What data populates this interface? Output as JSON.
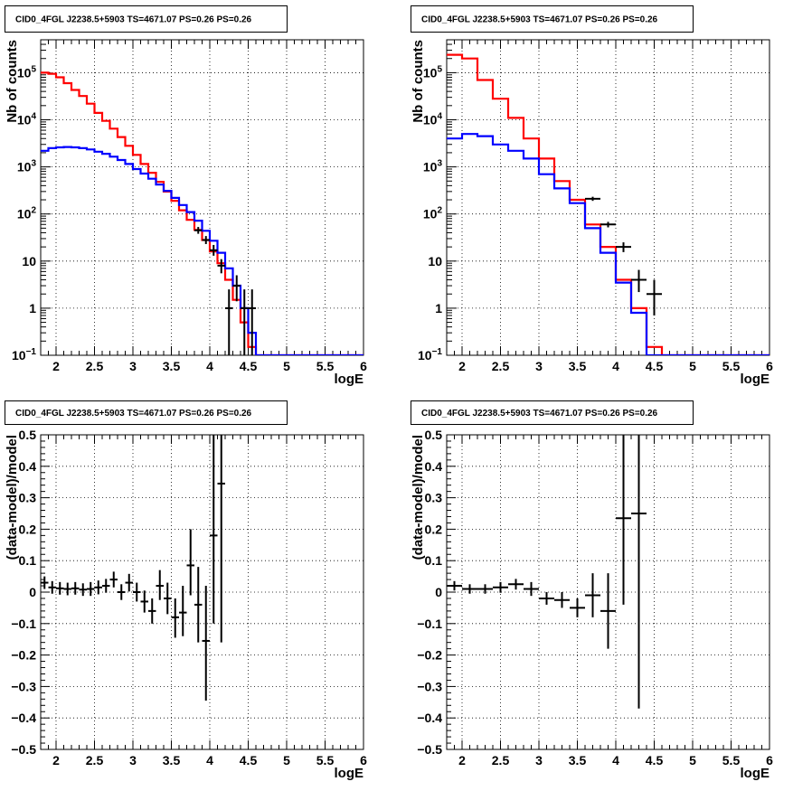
{
  "chart_data": [
    {
      "type": "line",
      "title": "CID0_4FGL J2238.5+5903 TS=4671.07 PS=0.26 PS=0.26",
      "xlabel": "logE",
      "ylabel": "Nb of counts",
      "yscale": "log",
      "xlim": [
        1.8,
        6.0
      ],
      "ylim": [
        0.1,
        500000
      ],
      "grid": true,
      "x_ticks": [
        "2",
        "2.5",
        "3",
        "3.5",
        "4",
        "4.5",
        "5",
        "5.5",
        "6"
      ],
      "y_ticks": [
        {
          "base": "10",
          "sup": "−1"
        },
        {
          "base": "1",
          "sup": ""
        },
        {
          "base": "10",
          "sup": ""
        },
        {
          "base": "10",
          "sup": "2"
        },
        {
          "base": "10",
          "sup": "3"
        },
        {
          "base": "10",
          "sup": "4"
        },
        {
          "base": "10",
          "sup": "5"
        }
      ],
      "bin_edges": [
        1.8,
        1.9,
        2.0,
        2.1,
        2.2,
        2.3,
        2.4,
        2.5,
        2.6,
        2.7,
        2.8,
        2.9,
        3.0,
        3.1,
        3.2,
        3.3,
        3.4,
        3.5,
        3.6,
        3.7,
        3.8,
        3.9,
        4.0,
        4.1,
        4.2,
        4.3,
        4.4,
        4.5,
        4.6,
        4.7,
        4.8,
        4.9,
        5.0,
        5.1,
        5.2,
        5.3,
        5.4,
        5.5,
        5.6,
        5.7,
        5.8,
        5.9,
        6.0
      ],
      "series": [
        {
          "color": "#ff0000",
          "values": [
            100000,
            95000,
            80000,
            60000,
            43000,
            32000,
            22000,
            14000,
            9500,
            6500,
            4300,
            2800,
            1800,
            1150,
            750,
            480,
            300,
            190,
            120,
            75,
            46,
            28,
            16,
            9,
            4,
            1.5,
            0.5,
            0.15,
            0.05,
            0.05,
            0.05,
            0.05,
            0.05,
            0.05,
            0.05,
            0.05,
            0.05,
            0.05,
            0.05,
            0.05,
            0.05,
            0.05
          ]
        },
        {
          "color": "#0000ff",
          "values": [
            2200,
            2500,
            2600,
            2650,
            2600,
            2500,
            2350,
            2100,
            1900,
            1650,
            1400,
            1150,
            900,
            720,
            560,
            420,
            310,
            220,
            155,
            110,
            72,
            44,
            27,
            15,
            7,
            3,
            1,
            0.3,
            0.1,
            0.1,
            0.1,
            0.1,
            0.1,
            0.1,
            0.1,
            0.1,
            0.1,
            0.1,
            0.1,
            0.1,
            0.1,
            0.1
          ]
        }
      ],
      "points": [
        {
          "x": 3.85,
          "y": 45,
          "xerr": 0.05,
          "ylo": 38,
          "yhi": 53
        },
        {
          "x": 3.95,
          "y": 28,
          "xerr": 0.05,
          "ylo": 23,
          "yhi": 34
        },
        {
          "x": 4.05,
          "y": 17,
          "xerr": 0.05,
          "ylo": 13,
          "yhi": 22
        },
        {
          "x": 4.15,
          "y": 8,
          "xerr": 0.05,
          "ylo": 5.5,
          "yhi": 11
        },
        {
          "x": 4.25,
          "y": 1,
          "xerr": 0.05,
          "ylo": 0.1,
          "yhi": 2.5
        },
        {
          "x": 4.35,
          "y": 3,
          "xerr": 0.05,
          "ylo": 1.4,
          "yhi": 5
        },
        {
          "x": 4.45,
          "y": 1,
          "xerr": 0.05,
          "ylo": 0.1,
          "yhi": 2.5
        },
        {
          "x": 4.55,
          "y": 1,
          "xerr": 0.05,
          "ylo": 0.1,
          "yhi": 2.5
        }
      ]
    },
    {
      "type": "line",
      "title": "CID0_4FGL J2238.5+5903 TS=4671.07 PS=0.26 PS=0.26",
      "xlabel": "logE",
      "ylabel": "Nb of counts",
      "yscale": "log",
      "xlim": [
        1.8,
        6.0
      ],
      "ylim": [
        0.1,
        500000
      ],
      "grid": true,
      "x_ticks": [
        "2",
        "2.5",
        "3",
        "3.5",
        "4",
        "4.5",
        "5",
        "5.5",
        "6"
      ],
      "y_ticks": [
        {
          "base": "10",
          "sup": "−1"
        },
        {
          "base": "1",
          "sup": ""
        },
        {
          "base": "10",
          "sup": ""
        },
        {
          "base": "10",
          "sup": "2"
        },
        {
          "base": "10",
          "sup": "3"
        },
        {
          "base": "10",
          "sup": "4"
        },
        {
          "base": "10",
          "sup": "5"
        }
      ],
      "bin_edges": [
        1.8,
        2.0,
        2.2,
        2.4,
        2.6,
        2.8,
        3.0,
        3.2,
        3.4,
        3.6,
        3.8,
        4.0,
        4.2,
        4.4,
        4.6,
        4.8,
        5.0,
        5.2,
        5.4,
        5.6,
        5.8,
        6.0
      ],
      "series": [
        {
          "color": "#ff0000",
          "values": [
            240000,
            200000,
            70000,
            28000,
            11000,
            4000,
            1500,
            500,
            200,
            60,
            20,
            4,
            1,
            0.15,
            0.05,
            0.05,
            0.05,
            0.05,
            0.05,
            0.05,
            0.05
          ]
        },
        {
          "color": "#0000ff",
          "values": [
            4000,
            5000,
            4500,
            3000,
            2200,
            1500,
            700,
            350,
            170,
            50,
            15,
            3.5,
            0.8,
            0.1,
            0.1,
            0.1,
            0.1,
            0.1,
            0.1,
            0.1,
            0.1
          ]
        }
      ],
      "points": [
        {
          "x": 3.7,
          "y": 210,
          "xerr": 0.1,
          "ylo": 190,
          "yhi": 232
        },
        {
          "x": 3.9,
          "y": 60,
          "xerr": 0.1,
          "ylo": 52,
          "yhi": 68
        },
        {
          "x": 4.1,
          "y": 20,
          "xerr": 0.1,
          "ylo": 15.5,
          "yhi": 25
        },
        {
          "x": 4.3,
          "y": 4,
          "xerr": 0.1,
          "ylo": 2.2,
          "yhi": 6.5
        },
        {
          "x": 4.5,
          "y": 2,
          "xerr": 0.1,
          "ylo": 0.7,
          "yhi": 4
        }
      ]
    },
    {
      "type": "scatter",
      "title": "CID0_4FGL J2238.5+5903 TS=4671.07 PS=0.26 PS=0.26",
      "xlabel": "logE",
      "ylabel": "(data-model)/model",
      "xlim": [
        1.8,
        6.0
      ],
      "ylim": [
        -0.5,
        0.5
      ],
      "grid": true,
      "x_ticks": [
        "2",
        "2.5",
        "3",
        "3.5",
        "4",
        "4.5",
        "5",
        "5.5",
        "6"
      ],
      "y_ticks": [
        "−0.5",
        "−0.4",
        "−0.3",
        "−0.2",
        "−0.1",
        "0",
        "0.1",
        "0.2",
        "0.3",
        "0.4",
        "0.5"
      ],
      "points": [
        {
          "x": 1.85,
          "y": 0.03,
          "xerr": 0.05,
          "ylo": 0.01,
          "yhi": 0.05
        },
        {
          "x": 1.95,
          "y": 0.015,
          "xerr": 0.05,
          "ylo": -0.005,
          "yhi": 0.035
        },
        {
          "x": 2.05,
          "y": 0.012,
          "xerr": 0.05,
          "ylo": -0.008,
          "yhi": 0.032
        },
        {
          "x": 2.15,
          "y": 0.01,
          "xerr": 0.05,
          "ylo": -0.01,
          "yhi": 0.03
        },
        {
          "x": 2.25,
          "y": 0.012,
          "xerr": 0.05,
          "ylo": -0.008,
          "yhi": 0.032
        },
        {
          "x": 2.35,
          "y": 0.008,
          "xerr": 0.05,
          "ylo": -0.012,
          "yhi": 0.028
        },
        {
          "x": 2.45,
          "y": 0.01,
          "xerr": 0.05,
          "ylo": -0.012,
          "yhi": 0.032
        },
        {
          "x": 2.55,
          "y": 0.015,
          "xerr": 0.05,
          "ylo": -0.007,
          "yhi": 0.037
        },
        {
          "x": 2.65,
          "y": 0.02,
          "xerr": 0.05,
          "ylo": -0.002,
          "yhi": 0.042
        },
        {
          "x": 2.75,
          "y": 0.04,
          "xerr": 0.05,
          "ylo": 0.015,
          "yhi": 0.065
        },
        {
          "x": 2.85,
          "y": 0.0,
          "xerr": 0.05,
          "ylo": -0.025,
          "yhi": 0.025
        },
        {
          "x": 2.95,
          "y": 0.03,
          "xerr": 0.05,
          "ylo": 0.002,
          "yhi": 0.058
        },
        {
          "x": 3.05,
          "y": 0.0,
          "xerr": 0.05,
          "ylo": -0.03,
          "yhi": 0.03
        },
        {
          "x": 3.15,
          "y": -0.03,
          "xerr": 0.05,
          "ylo": -0.065,
          "yhi": 0.005
        },
        {
          "x": 3.25,
          "y": -0.06,
          "xerr": 0.05,
          "ylo": -0.1,
          "yhi": -0.02
        },
        {
          "x": 3.35,
          "y": 0.02,
          "xerr": 0.05,
          "ylo": -0.025,
          "yhi": 0.07
        },
        {
          "x": 3.45,
          "y": -0.02,
          "xerr": 0.05,
          "ylo": -0.07,
          "yhi": 0.03
        },
        {
          "x": 3.55,
          "y": -0.08,
          "xerr": 0.05,
          "ylo": -0.145,
          "yhi": -0.02
        },
        {
          "x": 3.65,
          "y": -0.065,
          "xerr": 0.05,
          "ylo": -0.14,
          "yhi": 0.02
        },
        {
          "x": 3.75,
          "y": 0.085,
          "xerr": 0.05,
          "ylo": -0.01,
          "yhi": 0.2
        },
        {
          "x": 3.85,
          "y": -0.04,
          "xerr": 0.05,
          "ylo": -0.16,
          "yhi": 0.08
        },
        {
          "x": 3.95,
          "y": -0.155,
          "xerr": 0.05,
          "ylo": -0.345,
          "yhi": 0.02
        },
        {
          "x": 4.05,
          "y": 0.18,
          "xerr": 0.05,
          "ylo": -0.1,
          "yhi": 0.5
        },
        {
          "x": 4.15,
          "y": 0.345,
          "xerr": 0.05,
          "ylo": -0.16,
          "yhi": 0.5
        }
      ]
    },
    {
      "type": "scatter",
      "title": "CID0_4FGL J2238.5+5903 TS=4671.07 PS=0.26 PS=0.26",
      "xlabel": "logE",
      "ylabel": "(data-model)/model",
      "xlim": [
        1.8,
        6.0
      ],
      "ylim": [
        -0.5,
        0.5
      ],
      "grid": true,
      "x_ticks": [
        "2",
        "2.5",
        "3",
        "3.5",
        "4",
        "4.5",
        "5",
        "5.5",
        "6"
      ],
      "y_ticks": [
        "−0.5",
        "−0.4",
        "−0.3",
        "−0.2",
        "−0.1",
        "0",
        "0.1",
        "0.2",
        "0.3",
        "0.4",
        "0.5"
      ],
      "points": [
        {
          "x": 1.9,
          "y": 0.02,
          "xerr": 0.1,
          "ylo": 0.005,
          "yhi": 0.035
        },
        {
          "x": 2.1,
          "y": 0.01,
          "xerr": 0.1,
          "ylo": -0.005,
          "yhi": 0.025
        },
        {
          "x": 2.3,
          "y": 0.01,
          "xerr": 0.1,
          "ylo": -0.005,
          "yhi": 0.025
        },
        {
          "x": 2.5,
          "y": 0.015,
          "xerr": 0.1,
          "ylo": -0.002,
          "yhi": 0.032
        },
        {
          "x": 2.7,
          "y": 0.025,
          "xerr": 0.1,
          "ylo": 0.008,
          "yhi": 0.042
        },
        {
          "x": 2.9,
          "y": 0.01,
          "xerr": 0.1,
          "ylo": -0.012,
          "yhi": 0.032
        },
        {
          "x": 3.1,
          "y": -0.02,
          "xerr": 0.1,
          "ylo": -0.04,
          "yhi": 0.0
        },
        {
          "x": 3.3,
          "y": -0.025,
          "xerr": 0.1,
          "ylo": -0.05,
          "yhi": 0.0
        },
        {
          "x": 3.5,
          "y": -0.05,
          "xerr": 0.1,
          "ylo": -0.08,
          "yhi": -0.02
        },
        {
          "x": 3.7,
          "y": -0.01,
          "xerr": 0.1,
          "ylo": -0.08,
          "yhi": 0.06
        },
        {
          "x": 3.9,
          "y": -0.06,
          "xerr": 0.1,
          "ylo": -0.18,
          "yhi": 0.06
        },
        {
          "x": 4.1,
          "y": 0.235,
          "xerr": 0.1,
          "ylo": -0.04,
          "yhi": 0.5
        },
        {
          "x": 4.3,
          "y": 0.25,
          "xerr": 0.1,
          "ylo": -0.37,
          "yhi": 0.5
        }
      ]
    }
  ]
}
